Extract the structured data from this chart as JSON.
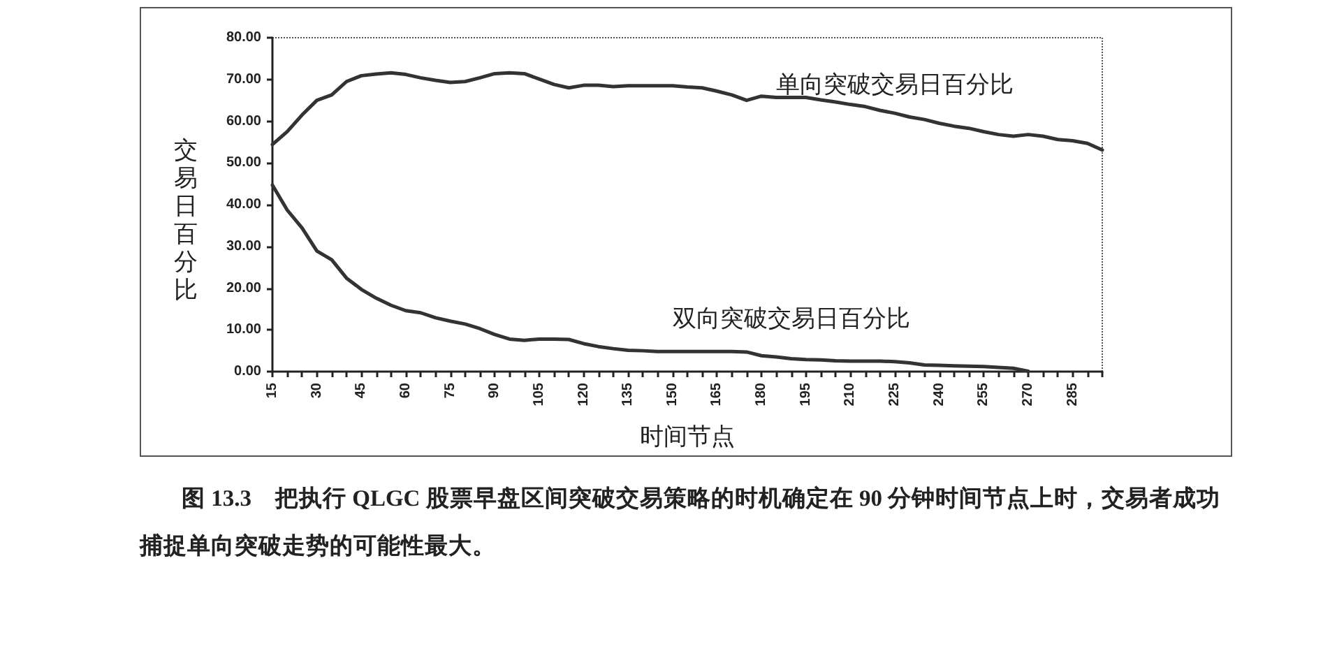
{
  "chart_data": {
    "type": "line",
    "xlabel": "时间节点",
    "ylabel": "交易日百分比",
    "annotations": [
      "图 13.3　把执行 QLGC 股票早盘区间突破交易策略的时机确定在 90 分钟时间节点上时，交易者成功捕捉单向突破走势的可能性最大。"
    ],
    "x": [
      15,
      20,
      25,
      30,
      35,
      40,
      45,
      50,
      55,
      60,
      65,
      70,
      75,
      80,
      85,
      90,
      95,
      100,
      105,
      110,
      115,
      120,
      125,
      130,
      135,
      140,
      145,
      150,
      155,
      160,
      165,
      170,
      175,
      180,
      185,
      190,
      195,
      200,
      205,
      210,
      215,
      220,
      225,
      230,
      235,
      240,
      245,
      250,
      255,
      260,
      265,
      270,
      275,
      280,
      285,
      290,
      295
    ],
    "series": [
      {
        "name": "单向突破交易日百分比",
        "color": "#333333",
        "values": [
          54.4,
          57.5,
          61.5,
          65,
          66.3,
          69.5,
          70.9,
          71.3,
          71.6,
          71.2,
          70.4,
          69.8,
          69.3,
          69.5,
          70.4,
          71.4,
          71.6,
          71.4,
          70.1,
          68.8,
          68,
          68.6,
          68.6,
          68.3,
          68.5,
          68.5,
          68.5,
          68.5,
          68.2,
          68,
          67.2,
          66.3,
          65,
          66,
          65.7,
          65.7,
          65.7,
          65.1,
          64.6,
          64,
          63.5,
          62.6,
          61.9,
          61,
          60.4,
          59.5,
          58.8,
          58.3,
          57.5,
          56.8,
          56.4,
          56.8,
          56.4,
          55.6,
          55.3,
          54.7,
          53.1
        ]
      },
      {
        "name": "双向突破交易日百分比",
        "color": "#333333",
        "values": [
          44.7,
          38.7,
          34.4,
          28.9,
          26.8,
          22.4,
          19.7,
          17.6,
          15.9,
          14.6,
          14.1,
          12.9,
          12.1,
          11.4,
          10.3,
          8.9,
          7.8,
          7.5,
          7.8,
          7.8,
          7.7,
          6.7,
          6,
          5.5,
          5.1,
          5,
          4.8,
          4.8,
          4.8,
          4.8,
          4.8,
          4.8,
          4.7,
          3.8,
          3.5,
          3.1,
          2.9,
          2.8,
          2.6,
          2.5,
          2.5,
          2.5,
          2.4,
          2.1,
          1.6,
          1.5,
          1.4,
          1.3,
          1.2,
          1,
          0.8,
          0.1,
          null,
          null,
          null,
          null,
          null
        ]
      }
    ],
    "xlim": [
      15,
      295
    ],
    "xticks": [
      15,
      {
        "value": 20,
        "label": null
      },
      {
        "value": 25,
        "label": null
      },
      30,
      {
        "value": 35,
        "label": null
      },
      {
        "value": 40,
        "label": null
      },
      45,
      {
        "value": 50,
        "label": null
      },
      {
        "value": 55,
        "label": null
      },
      60,
      {
        "value": 65,
        "label": null
      },
      {
        "value": 70,
        "label": null
      },
      75,
      {
        "value": 80,
        "label": null
      },
      {
        "value": 85,
        "label": null
      },
      90,
      {
        "value": 95,
        "label": null
      },
      {
        "value": 100,
        "label": null
      },
      105,
      {
        "value": 110,
        "label": null
      },
      {
        "value": 115,
        "label": null
      },
      120,
      {
        "value": 125,
        "label": null
      },
      {
        "value": 130,
        "label": null
      },
      135,
      {
        "value": 140,
        "label": null
      },
      {
        "value": 145,
        "label": null
      },
      150,
      {
        "value": 155,
        "label": null
      },
      {
        "value": 160,
        "label": null
      },
      165,
      {
        "value": 170,
        "label": null
      },
      {
        "value": 175,
        "label": null
      },
      180,
      {
        "value": 185,
        "label": null
      },
      {
        "value": 190,
        "label": null
      },
      195,
      {
        "value": 200,
        "label": null
      },
      {
        "value": 205,
        "label": null
      },
      210,
      {
        "value": 215,
        "label": null
      },
      {
        "value": 220,
        "label": null
      },
      225,
      {
        "value": 230,
        "label": null
      },
      {
        "value": 235,
        "label": null
      },
      240,
      {
        "value": 245,
        "label": null
      },
      {
        "value": 250,
        "label": null
      },
      255,
      {
        "value": 260,
        "label": null
      },
      {
        "value": 265,
        "label": null
      },
      270,
      {
        "value": 275,
        "label": null
      },
      {
        "value": 280,
        "label": null
      },
      285,
      {
        "value": 290,
        "label": null
      },
      {
        "value": 295,
        "label": null
      }
    ],
    "ylim": [
      0,
      80
    ],
    "yticks": [
      {
        "value": 0,
        "label": "0.00"
      },
      {
        "value": 10,
        "label": "10.00"
      },
      {
        "value": 20,
        "label": "20.00"
      },
      {
        "value": 30,
        "label": "30.00"
      },
      {
        "value": 40,
        "label": "40.00"
      },
      {
        "value": 50,
        "label": "50.00"
      },
      {
        "value": 60,
        "label": "60.00"
      },
      {
        "value": 70,
        "label": "70.00"
      },
      {
        "value": 80,
        "label": "80.00"
      }
    ],
    "grid": false,
    "legend": false,
    "marker": "none",
    "line_style": "solid"
  }
}
